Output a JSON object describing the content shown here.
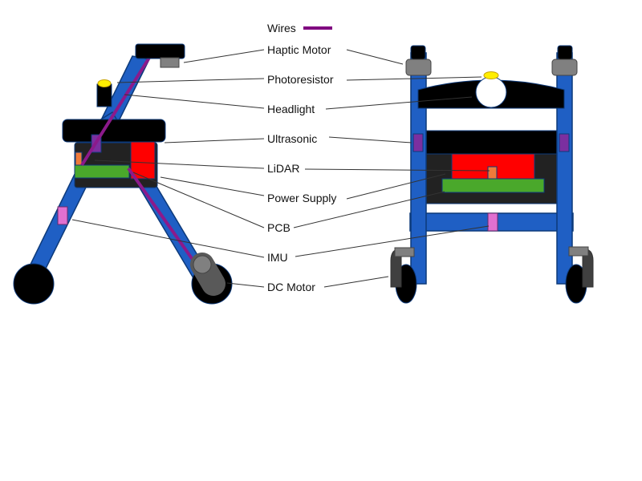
{
  "legend": {
    "wires_label": "Wires",
    "wire_color": "#800080"
  },
  "labels": {
    "haptic_motor": "Haptic Motor",
    "photoresistor": "Photoresistor",
    "headlight": "Headlight",
    "ultrasonic": "Ultrasonic",
    "lidar": "LiDAR",
    "power_supply": "Power Supply",
    "pcb": "PCB",
    "imu": "IMU",
    "dc_motor": "DC Motor"
  },
  "colors": {
    "frame": "#1f5fc4",
    "frame_stroke": "#0d3a7a",
    "body": "#000000",
    "housing": "#222222",
    "power_supply": "#ff0000",
    "pcb": "#4aa82b",
    "lidar": "#ef7a3a",
    "ultrasonic": "#7b2fa0",
    "imu": "#e070d0",
    "haptic_motor": "#808080",
    "photoresistor": "#ffee00",
    "headlight_lens": "#ffffff",
    "dc_motor": "#595959",
    "wheel": "#000000"
  }
}
